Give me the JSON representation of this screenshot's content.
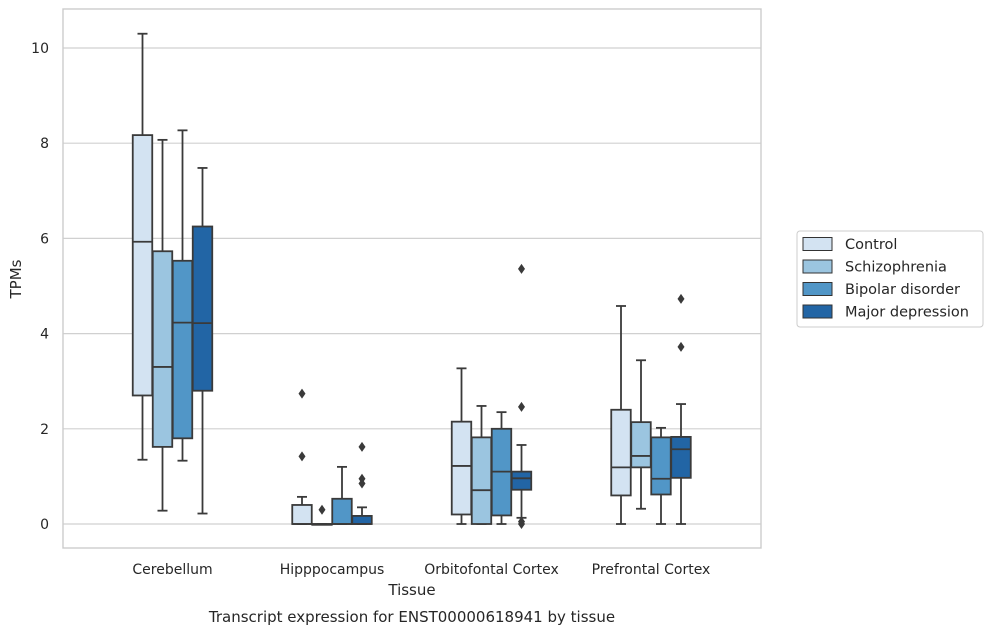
{
  "chart_data": {
    "type": "boxplot",
    "title": "",
    "caption": "Transcript expression for ENST00000618941 by tissue",
    "xlabel": "Tissue",
    "ylabel": "TPMs",
    "ylim": [
      -0.5,
      10.8
    ],
    "yticks": [
      0,
      2,
      4,
      6,
      8,
      10
    ],
    "grid": "horizontal",
    "legend_position": "right",
    "categories": [
      "Cerebellum",
      "Hipppocampus",
      "Orbitofontal Cortex",
      "Prefrontal Cortex"
    ],
    "series": [
      {
        "name": "Control",
        "color": "#d3e3f2",
        "boxes": [
          {
            "whislo": 1.35,
            "q1": 2.7,
            "med": 5.93,
            "q3": 8.17,
            "whishi": 10.3,
            "fliers": []
          },
          {
            "whislo": 0.0,
            "q1": 0.0,
            "med": 0.0,
            "q3": 0.4,
            "whishi": 0.57,
            "fliers": [
              1.42,
              2.74
            ]
          },
          {
            "whislo": 0.0,
            "q1": 0.2,
            "med": 1.22,
            "q3": 2.15,
            "whishi": 3.27,
            "fliers": []
          },
          {
            "whislo": 0.0,
            "q1": 0.6,
            "med": 1.19,
            "q3": 2.4,
            "whishi": 4.58,
            "fliers": []
          }
        ]
      },
      {
        "name": "Schizophrenia",
        "color": "#9bc5e0",
        "boxes": [
          {
            "whislo": 0.28,
            "q1": 1.62,
            "med": 3.3,
            "q3": 5.73,
            "whishi": 8.07,
            "fliers": []
          },
          {
            "whislo": 0.0,
            "q1": 0.0,
            "med": 0.0,
            "q3": 0.0,
            "whishi": 0.0,
            "fliers": [
              0.3
            ]
          },
          {
            "whislo": 0.0,
            "q1": 0.0,
            "med": 0.71,
            "q3": 1.82,
            "whishi": 2.48,
            "fliers": []
          },
          {
            "whislo": 0.32,
            "q1": 1.19,
            "med": 1.43,
            "q3": 2.14,
            "whishi": 3.44,
            "fliers": []
          }
        ]
      },
      {
        "name": "Bipolar disorder",
        "color": "#5196c7",
        "boxes": [
          {
            "whislo": 1.33,
            "q1": 1.8,
            "med": 4.23,
            "q3": 5.53,
            "whishi": 8.27,
            "fliers": []
          },
          {
            "whislo": 0.0,
            "q1": 0.0,
            "med": 0.0,
            "q3": 0.53,
            "whishi": 1.2,
            "fliers": []
          },
          {
            "whislo": 0.0,
            "q1": 0.18,
            "med": 1.1,
            "q3": 2.0,
            "whishi": 2.35,
            "fliers": []
          },
          {
            "whislo": 0.0,
            "q1": 0.62,
            "med": 0.95,
            "q3": 1.82,
            "whishi": 2.02,
            "fliers": []
          }
        ]
      },
      {
        "name": "Major depression",
        "color": "#2265a5",
        "boxes": [
          {
            "whislo": 0.22,
            "q1": 2.8,
            "med": 4.22,
            "q3": 6.25,
            "whishi": 7.48,
            "fliers": []
          },
          {
            "whislo": 0.0,
            "q1": 0.0,
            "med": 0.0,
            "q3": 0.17,
            "whishi": 0.35,
            "fliers": [
              0.85,
              0.95,
              1.62
            ]
          },
          {
            "whislo": 0.13,
            "q1": 0.72,
            "med": 0.96,
            "q3": 1.1,
            "whishi": 1.66,
            "fliers": [
              0.0,
              0.05,
              2.46,
              5.36
            ]
          },
          {
            "whislo": 0.0,
            "q1": 0.97,
            "med": 1.57,
            "q3": 1.83,
            "whishi": 2.52,
            "fliers": [
              3.72,
              4.73
            ]
          }
        ]
      }
    ]
  }
}
